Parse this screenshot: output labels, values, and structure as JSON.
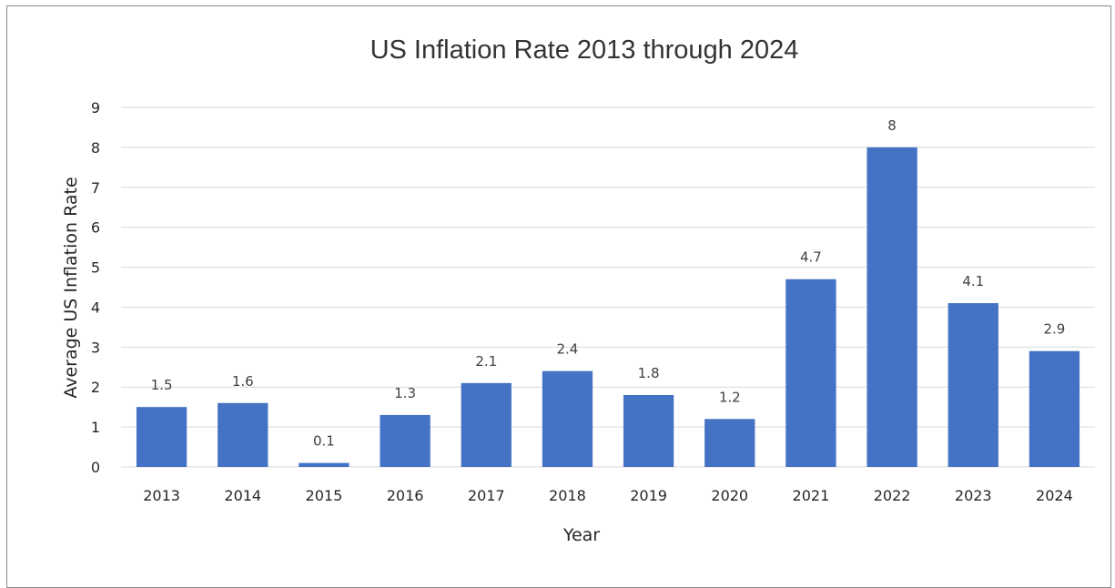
{
  "chart_data": {
    "type": "bar",
    "title": "US Inflation Rate 2013 through 2024",
    "xlabel": "Year",
    "ylabel": "Average US Inflation Rate",
    "categories": [
      "2013",
      "2014",
      "2015",
      "2016",
      "2017",
      "2018",
      "2019",
      "2020",
      "2021",
      "2022",
      "2023",
      "2024"
    ],
    "values": [
      1.5,
      1.6,
      0.1,
      1.3,
      2.1,
      2.4,
      1.8,
      1.2,
      4.7,
      8,
      4.1,
      2.9
    ],
    "data_labels": [
      "1.5",
      "1.6",
      "0.1",
      "1.3",
      "2.1",
      "2.4",
      "1.8",
      "1.2",
      "4.7",
      "8",
      "4.1",
      "2.9"
    ],
    "ylim": [
      0,
      9
    ],
    "yticks": [
      "0",
      "1",
      "2",
      "3",
      "4",
      "5",
      "6",
      "7",
      "8",
      "9"
    ],
    "grid": true,
    "legend": "none",
    "bar_color": "#4472C4"
  }
}
